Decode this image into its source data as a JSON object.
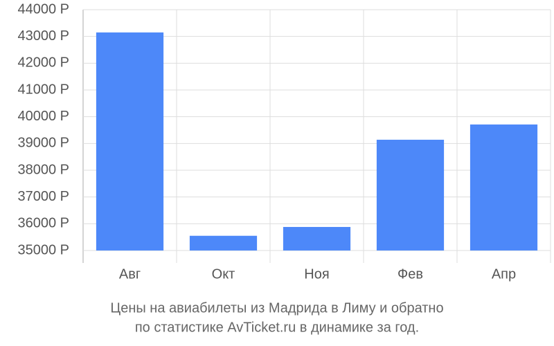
{
  "chart_data": {
    "type": "bar",
    "title": [
      "Цены на авиабилеты из Мадрида в Лиму и обратно",
      "по статистике AvTicket.ru в динамике за год."
    ],
    "categories": [
      "Авг",
      "Окт",
      "Ноя",
      "Фев",
      "Апр"
    ],
    "values": [
      43150,
      35550,
      35880,
      39140,
      39710
    ],
    "color": "#4d88f9",
    "ylim": [
      35000,
      44000
    ],
    "yticks": [
      {
        "value": 35000,
        "label": "35000 Р"
      },
      {
        "value": 36000,
        "label": "36000 Р"
      },
      {
        "value": 37000,
        "label": "37000 Р"
      },
      {
        "value": 38000,
        "label": "38000 Р"
      },
      {
        "value": 39000,
        "label": "39000 Р"
      },
      {
        "value": 40000,
        "label": "40000 Р"
      },
      {
        "value": 41000,
        "label": "41000 Р"
      },
      {
        "value": 42000,
        "label": "42000 Р"
      },
      {
        "value": 43000,
        "label": "43000 Р"
      },
      {
        "value": 44000,
        "label": "44000 Р"
      }
    ],
    "grid": true
  }
}
